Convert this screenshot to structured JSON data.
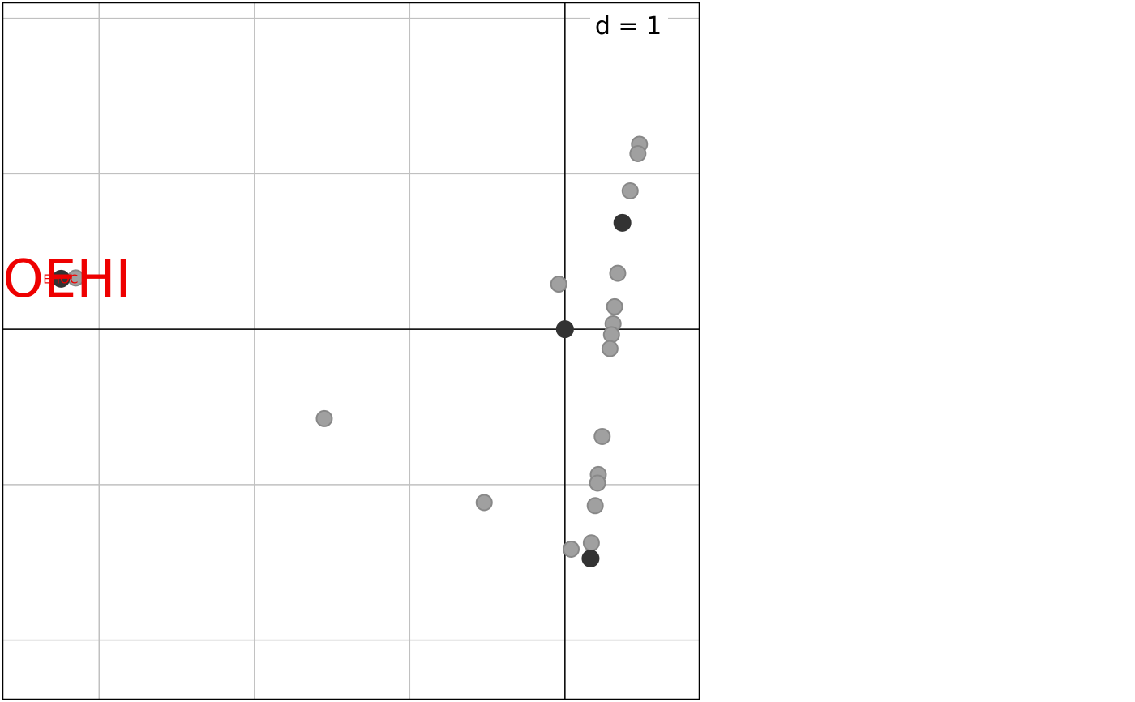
{
  "chart_data": {
    "type": "scatter",
    "scale_label": "d = 1",
    "grid": true,
    "xlim": [
      -3.62,
      0.865
    ],
    "ylim": [
      -2.38,
      2.1
    ],
    "grid_x": [
      -3,
      -2,
      -1,
      0
    ],
    "grid_y": [
      -2,
      -1,
      0,
      1,
      2
    ],
    "origin": [
      0,
      0
    ],
    "points_light": [
      {
        "x": 0.48,
        "y": 1.19
      },
      {
        "x": 0.47,
        "y": 1.13
      },
      {
        "x": 0.42,
        "y": 0.89
      },
      {
        "x": 0.34,
        "y": 0.36
      },
      {
        "x": -0.04,
        "y": 0.29
      },
      {
        "x": 0.32,
        "y": 0.145
      },
      {
        "x": 0.31,
        "y": 0.035
      },
      {
        "x": 0.3,
        "y": -0.035
      },
      {
        "x": 0.29,
        "y": -0.125
      },
      {
        "x": -3.15,
        "y": 0.33
      },
      {
        "x": -1.55,
        "y": -0.575
      },
      {
        "x": 0.24,
        "y": -0.69
      },
      {
        "x": 0.215,
        "y": -0.935
      },
      {
        "x": 0.21,
        "y": -0.99
      },
      {
        "x": -0.52,
        "y": -1.115
      },
      {
        "x": 0.195,
        "y": -1.135
      },
      {
        "x": 0.17,
        "y": -1.375
      },
      {
        "x": 0.04,
        "y": -1.415
      }
    ],
    "points_dark": [
      {
        "x": 0.37,
        "y": 0.685
      },
      {
        "x": 0.0,
        "y": 0.0
      },
      {
        "x": 0.165,
        "y": -1.475
      },
      {
        "x": -3.245,
        "y": 0.325
      }
    ],
    "labels": [
      {
        "text": "OEHI",
        "x": -3.62,
        "y": 0.3,
        "color": "#ee0000",
        "size": "large"
      },
      {
        "text": "EHOC",
        "x": -3.36,
        "y": 0.32,
        "color": "#ee0000",
        "size": "small"
      }
    ],
    "colors": {
      "grid": "#c0c0c0",
      "axis": "#000000",
      "light_fill": "#a0a0a0",
      "light_stroke": "#888888",
      "dark_fill": "#333333",
      "label": "#ee0000"
    }
  }
}
